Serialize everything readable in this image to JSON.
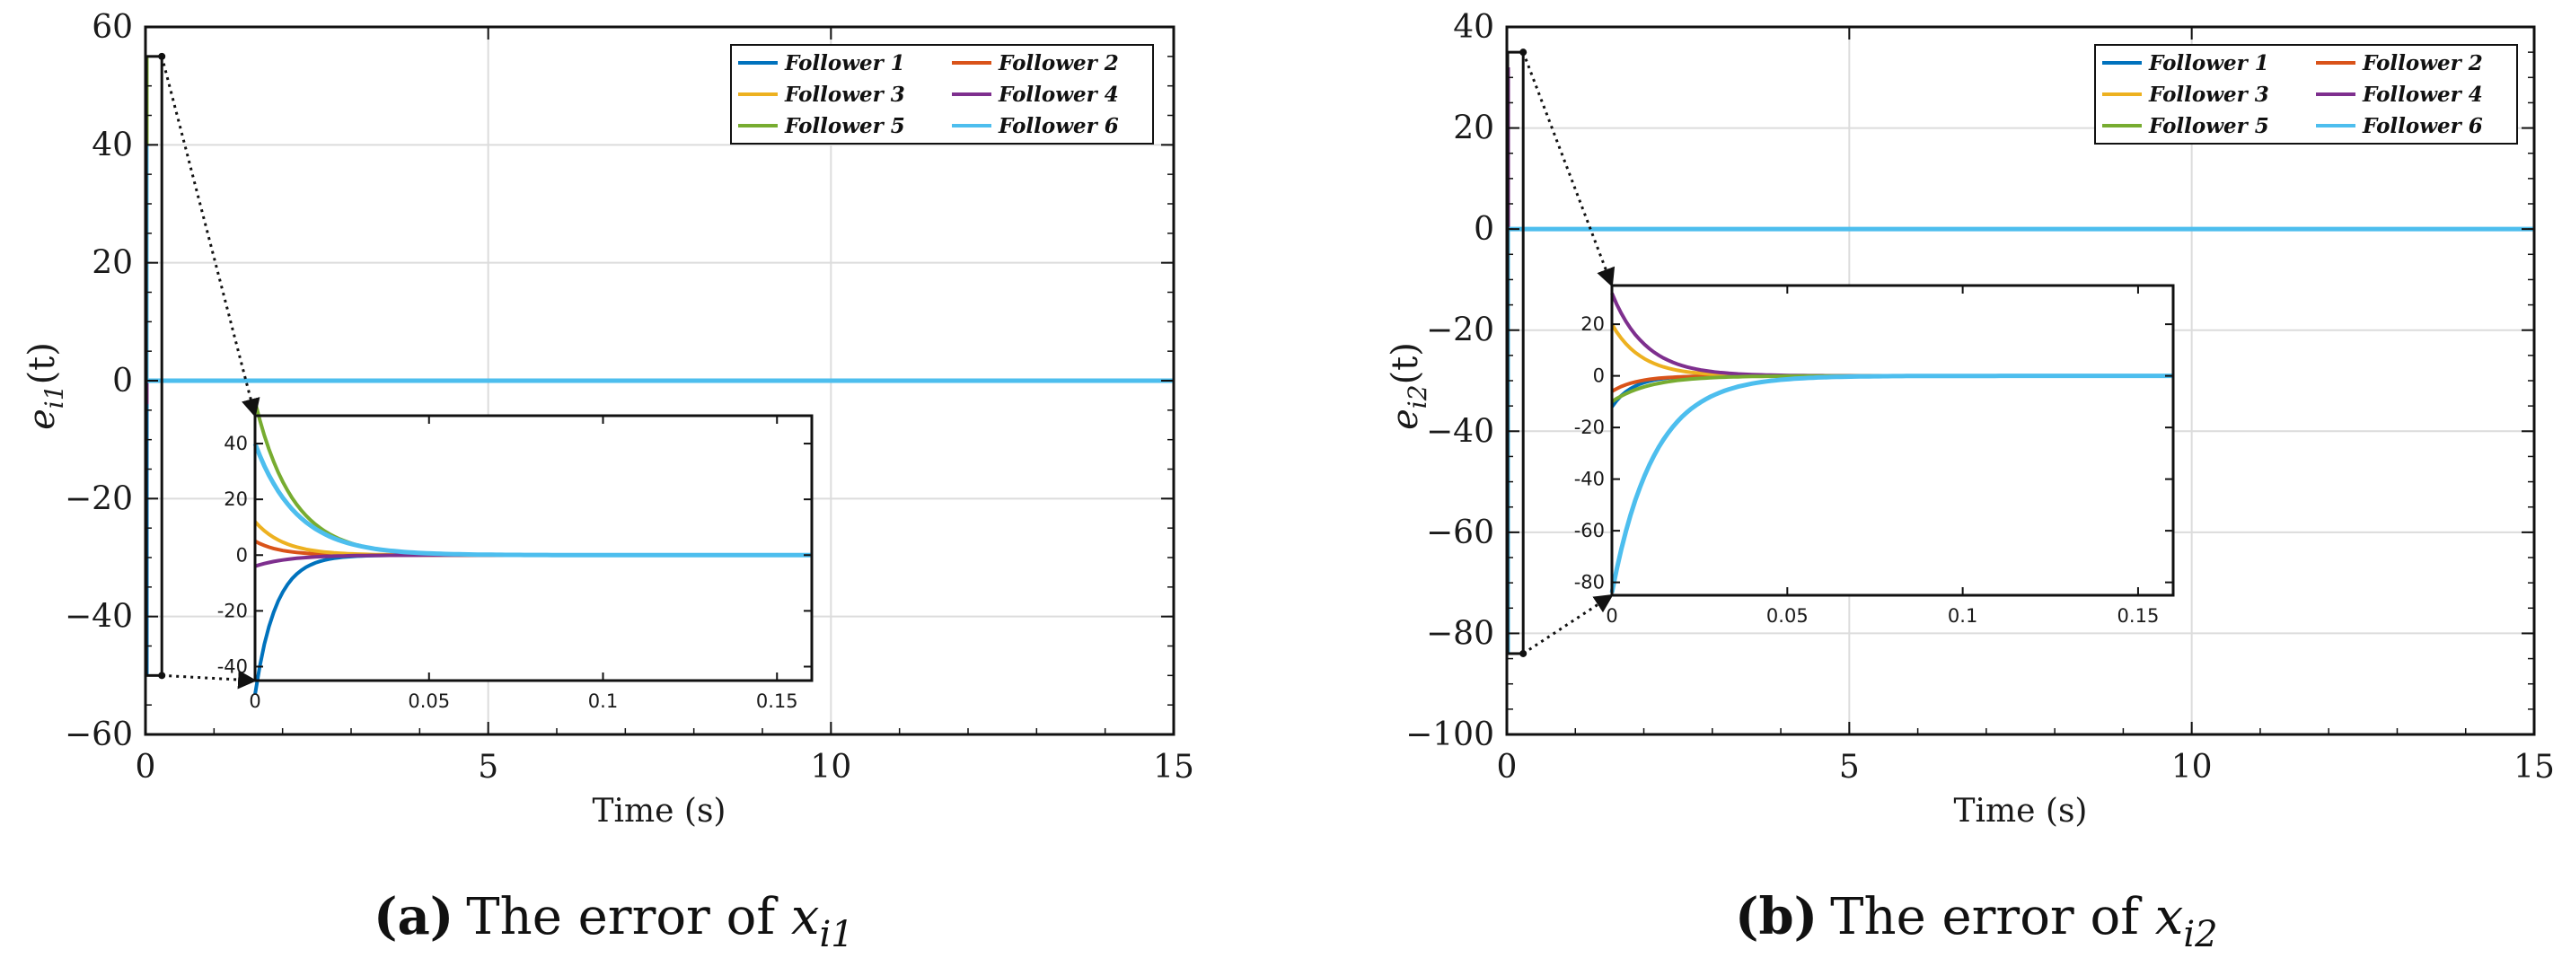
{
  "colors": {
    "follower1": "#0072BD",
    "follower2": "#D95319",
    "follower3": "#EDB120",
    "follower4": "#7E2F8E",
    "follower5": "#77AC30",
    "follower6": "#4DBEEE",
    "grid": "#dcdcdc",
    "axis": "#111111"
  },
  "chart_data": [
    {
      "type": "line",
      "panel": "a",
      "caption": {
        "prefix": "(",
        "letter": "a",
        "suffix": ")",
        "text": "The error of ",
        "var": "x",
        "sub": "i1"
      },
      "ylabel": {
        "symbol": "e",
        "sub": "i1",
        "rest": "(t)"
      },
      "xlabel": "Time (s)",
      "xlim": [
        0,
        15
      ],
      "ylim": [
        -60,
        60
      ],
      "xticks": [
        0,
        5,
        10,
        15
      ],
      "xtick_labels": [
        "0",
        "5",
        "10",
        "15"
      ],
      "yticks": [
        -60,
        -40,
        -20,
        0,
        20,
        40,
        60
      ],
      "ytick_labels": [
        "−60",
        "−40",
        "−20",
        "0",
        "20",
        "40",
        "60"
      ],
      "grid": true,
      "legend": "top-right",
      "series": [
        {
          "name": "Follower 1",
          "initial": -50,
          "final": 0
        },
        {
          "name": "Follower 2",
          "initial": 5,
          "final": 0
        },
        {
          "name": "Follower 3",
          "initial": 12,
          "final": 0
        },
        {
          "name": "Follower 4",
          "initial": -4,
          "final": 0
        },
        {
          "name": "Follower 5",
          "initial": 55,
          "final": 0
        },
        {
          "name": "Follower 6",
          "initial": 40,
          "final": 0
        }
      ],
      "zoom_window": {
        "x": [
          0,
          0.16
        ],
        "y": [
          -50,
          55
        ]
      },
      "inset": {
        "xlim": [
          0,
          0.16
        ],
        "ylim": [
          -45,
          50
        ],
        "xticks": [
          0,
          0.05,
          0.1,
          0.15
        ],
        "xtick_labels": [
          "0",
          "0.05",
          "0.1",
          "0.15"
        ],
        "yticks": [
          -40,
          -20,
          0,
          20,
          40
        ],
        "ytick_labels": [
          "-40",
          "-20",
          "0",
          "20",
          "40"
        ]
      }
    },
    {
      "type": "line",
      "panel": "b",
      "caption": {
        "prefix": "(",
        "letter": "b",
        "suffix": ")",
        "text": "The error of ",
        "var": "x",
        "sub": "i2"
      },
      "ylabel": {
        "symbol": "e",
        "sub": "i2",
        "rest": "(t)"
      },
      "xlabel": "Time (s)",
      "xlim": [
        0,
        15
      ],
      "ylim": [
        -100,
        40
      ],
      "xticks": [
        0,
        5,
        10,
        15
      ],
      "xtick_labels": [
        "0",
        "5",
        "10",
        "15"
      ],
      "yticks": [
        -100,
        -80,
        -60,
        -40,
        -20,
        0,
        20,
        40
      ],
      "ytick_labels": [
        "−100",
        "−80",
        "−60",
        "−40",
        "−20",
        "0",
        "20",
        "40"
      ],
      "grid": true,
      "legend": "top-right",
      "series": [
        {
          "name": "Follower 1",
          "initial": -12,
          "final": 0
        },
        {
          "name": "Follower 2",
          "initial": -6,
          "final": 0
        },
        {
          "name": "Follower 3",
          "initial": 20,
          "final": 0
        },
        {
          "name": "Follower 4",
          "initial": 32,
          "final": 0
        },
        {
          "name": "Follower 5",
          "initial": -10,
          "final": 0
        },
        {
          "name": "Follower 6",
          "initial": -84,
          "final": 0
        }
      ],
      "zoom_window": {
        "x": [
          0,
          0.16
        ],
        "y": [
          -84,
          35
        ]
      },
      "inset": {
        "xlim": [
          0,
          0.16
        ],
        "ylim": [
          -85,
          35
        ],
        "xticks": [
          0,
          0.05,
          0.1,
          0.15
        ],
        "xtick_labels": [
          "0",
          "0.05",
          "0.1",
          "0.15"
        ],
        "yticks": [
          -80,
          -60,
          -40,
          -20,
          0,
          20
        ],
        "ytick_labels": [
          "-80",
          "-60",
          "-40",
          "-20",
          "0",
          "20"
        ]
      }
    }
  ]
}
